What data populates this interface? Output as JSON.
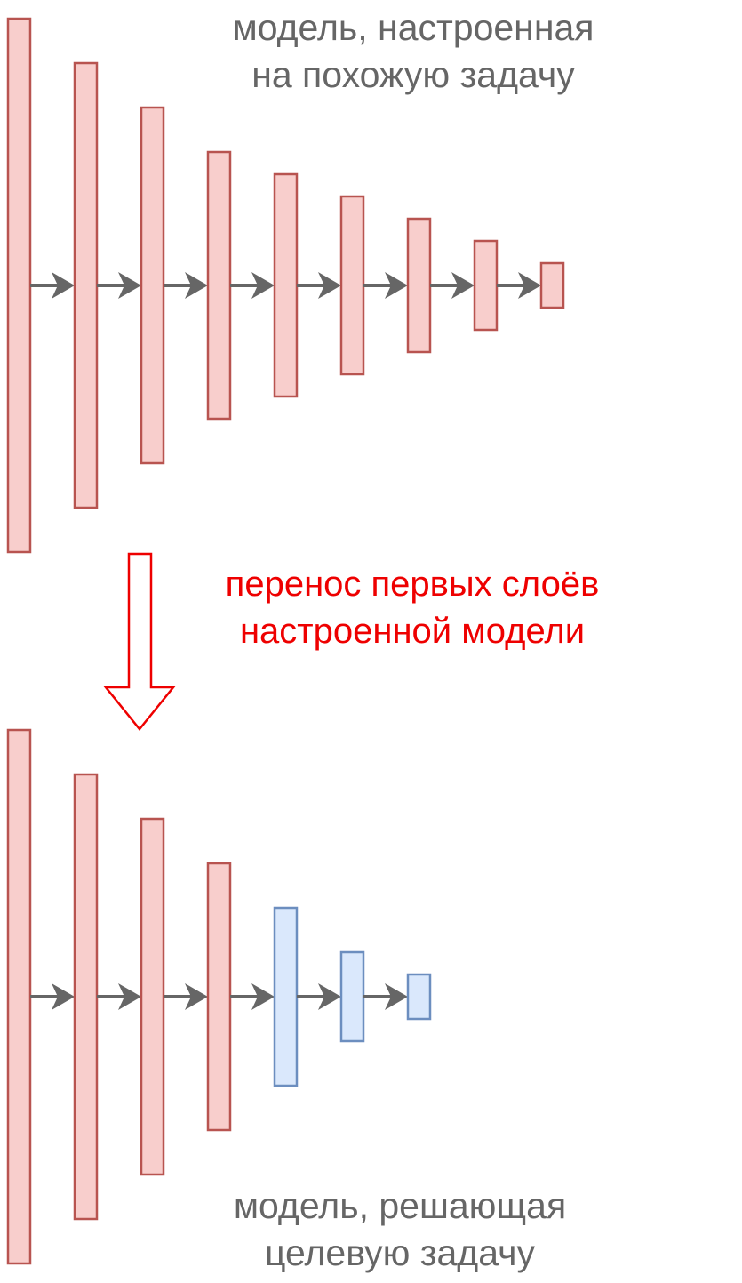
{
  "top_model": {
    "caption_line1": "модель, настроенная",
    "caption_line2": "на похожую задачу",
    "layers": [
      "red",
      "red",
      "red",
      "red",
      "red",
      "red",
      "red",
      "red",
      "red"
    ]
  },
  "transfer": {
    "label_line1": "перенос первых слоёв",
    "label_line2": "настроенной модели"
  },
  "bottom_model": {
    "caption_line1": "модель, решающая",
    "caption_line2": "целевую задачу",
    "layers": [
      "red",
      "red",
      "red",
      "red",
      "blue",
      "blue",
      "blue"
    ]
  },
  "colors": {
    "transferred_fill": "#f8cecc",
    "transferred_stroke": "#b85450",
    "new_fill": "#dae8fc",
    "new_stroke": "#6c8ebf",
    "connector": "#666666",
    "transfer_accent": "#ee0000",
    "caption": "#666666"
  }
}
